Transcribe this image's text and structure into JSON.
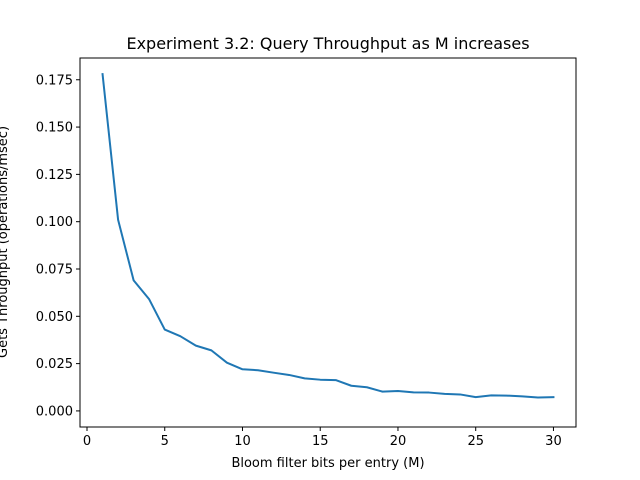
{
  "chart_data": {
    "type": "line",
    "title": "Experiment 3.2: Query Throughput as M increases",
    "xlabel": "Bloom filter bits per entry (M)",
    "ylabel": "Gets Throughput (operations/msec)",
    "xlim": [
      -0.45,
      31.45
    ],
    "ylim": [
      -0.0085,
      0.1865
    ],
    "xticks": [
      0,
      5,
      10,
      15,
      20,
      25,
      30
    ],
    "xtick_labels": [
      "0",
      "5",
      "10",
      "15",
      "20",
      "25",
      "30"
    ],
    "yticks": [
      0.0,
      0.025,
      0.05,
      0.075,
      0.1,
      0.125,
      0.15,
      0.175
    ],
    "ytick_labels": [
      "0.000",
      "0.025",
      "0.050",
      "0.075",
      "0.100",
      "0.125",
      "0.150",
      "0.175"
    ],
    "grid": false,
    "legend": "none",
    "series": [
      {
        "color": "#1f77b4",
        "x": [
          1,
          2,
          3,
          4,
          5,
          6,
          7,
          8,
          9,
          10,
          11,
          12,
          13,
          14,
          15,
          16,
          17,
          18,
          19,
          20,
          21,
          22,
          23,
          24,
          25,
          26,
          27,
          28,
          29,
          30
        ],
        "y": [
          0.178,
          0.101,
          0.069,
          0.059,
          0.043,
          0.0395,
          0.0345,
          0.032,
          0.0255,
          0.022,
          0.0215,
          0.0202,
          0.019,
          0.0172,
          0.0165,
          0.0163,
          0.0133,
          0.0125,
          0.0102,
          0.0105,
          0.0098,
          0.0097,
          0.009,
          0.0087,
          0.0073,
          0.0082,
          0.0081,
          0.0077,
          0.0071,
          0.0073
        ]
      }
    ]
  }
}
